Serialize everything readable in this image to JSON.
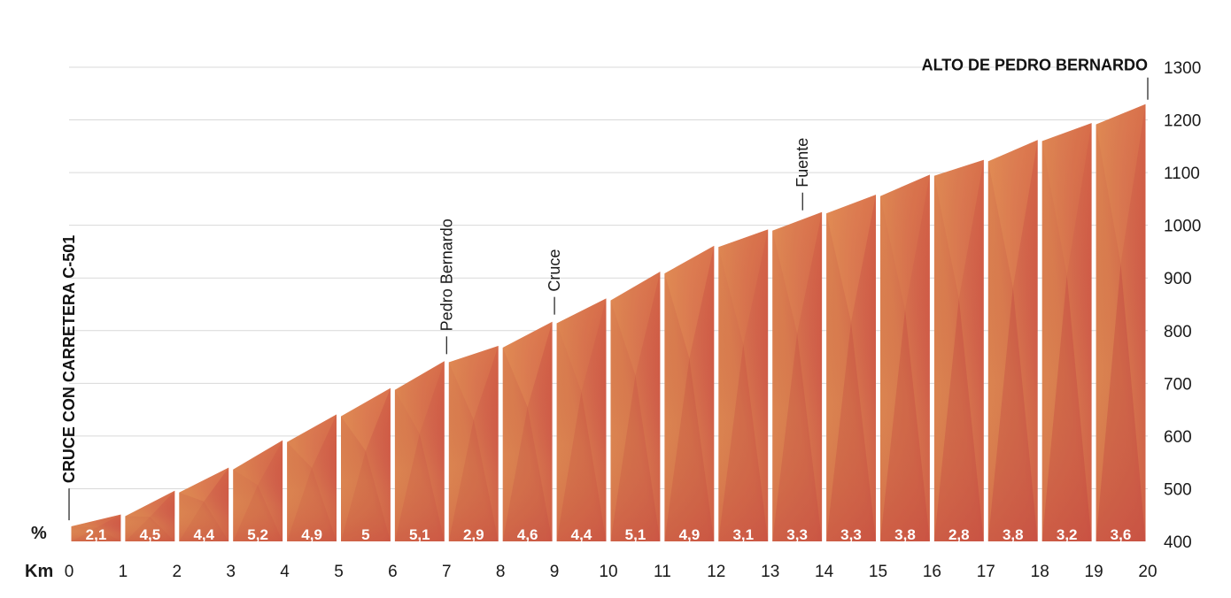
{
  "chart_data": {
    "type": "area",
    "x_unit_label": "Km",
    "gradient_unit_label": "%",
    "x_ticks": [
      0,
      1,
      2,
      3,
      4,
      5,
      6,
      7,
      8,
      9,
      10,
      11,
      12,
      13,
      14,
      15,
      16,
      17,
      18,
      19,
      20
    ],
    "y_ticks": [
      400,
      500,
      600,
      700,
      800,
      900,
      1000,
      1100,
      1200,
      1300
    ],
    "ylim": [
      400,
      1300
    ],
    "xlim": [
      0,
      20
    ],
    "segments": [
      {
        "km_start": 0,
        "km_end": 1,
        "gradient": "2,1",
        "elev_start": 430,
        "elev_end": 451
      },
      {
        "km_start": 1,
        "km_end": 2,
        "gradient": "4,5",
        "elev_start": 451,
        "elev_end": 496
      },
      {
        "km_start": 2,
        "km_end": 3,
        "gradient": "4,4",
        "elev_start": 496,
        "elev_end": 540
      },
      {
        "km_start": 3,
        "km_end": 4,
        "gradient": "5,2",
        "elev_start": 540,
        "elev_end": 592
      },
      {
        "km_start": 4,
        "km_end": 5,
        "gradient": "4,9",
        "elev_start": 592,
        "elev_end": 641
      },
      {
        "km_start": 5,
        "km_end": 6,
        "gradient": "5",
        "elev_start": 641,
        "elev_end": 691
      },
      {
        "km_start": 6,
        "km_end": 7,
        "gradient": "5,1",
        "elev_start": 691,
        "elev_end": 742
      },
      {
        "km_start": 7,
        "km_end": 8,
        "gradient": "2,9",
        "elev_start": 742,
        "elev_end": 771
      },
      {
        "km_start": 8,
        "km_end": 9,
        "gradient": "4,6",
        "elev_start": 771,
        "elev_end": 817
      },
      {
        "km_start": 9,
        "km_end": 10,
        "gradient": "4,4",
        "elev_start": 817,
        "elev_end": 861
      },
      {
        "km_start": 10,
        "km_end": 11,
        "gradient": "5,1",
        "elev_start": 861,
        "elev_end": 912
      },
      {
        "km_start": 11,
        "km_end": 12,
        "gradient": "4,9",
        "elev_start": 912,
        "elev_end": 961
      },
      {
        "km_start": 12,
        "km_end": 13,
        "gradient": "3,1",
        "elev_start": 961,
        "elev_end": 992
      },
      {
        "km_start": 13,
        "km_end": 14,
        "gradient": "3,3",
        "elev_start": 992,
        "elev_end": 1025
      },
      {
        "km_start": 14,
        "km_end": 15,
        "gradient": "3,3",
        "elev_start": 1025,
        "elev_end": 1058
      },
      {
        "km_start": 15,
        "km_end": 16,
        "gradient": "3,8",
        "elev_start": 1058,
        "elev_end": 1096
      },
      {
        "km_start": 16,
        "km_end": 17,
        "gradient": "2,8",
        "elev_start": 1096,
        "elev_end": 1124
      },
      {
        "km_start": 17,
        "km_end": 18,
        "gradient": "3,8",
        "elev_start": 1124,
        "elev_end": 1162
      },
      {
        "km_start": 18,
        "km_end": 19,
        "gradient": "3,2",
        "elev_start": 1162,
        "elev_end": 1194
      },
      {
        "km_start": 19,
        "km_end": 20,
        "gradient": "3,6",
        "elev_start": 1194,
        "elev_end": 1230
      }
    ],
    "annotations": [
      {
        "text": "CRUCE CON CARRETERA C-501",
        "km": 0,
        "elev": 430,
        "style": "bold"
      },
      {
        "text": "Pedro Bernardo",
        "km": 7,
        "elev": 742,
        "style": "normal"
      },
      {
        "text": "Cruce",
        "km": 9,
        "elev": 817,
        "style": "normal"
      },
      {
        "text": "Fuente",
        "km": 13.6,
        "elev": 1015,
        "style": "normal"
      },
      {
        "text": "ALTO DE PEDRO BERNARDO",
        "km": 20,
        "elev": 1230,
        "style": "bold"
      }
    ],
    "colors": {
      "low": "#c93a3a",
      "mid": "#d4654a",
      "high": "#dd8f50",
      "grid": "#d9d9d9"
    }
  }
}
